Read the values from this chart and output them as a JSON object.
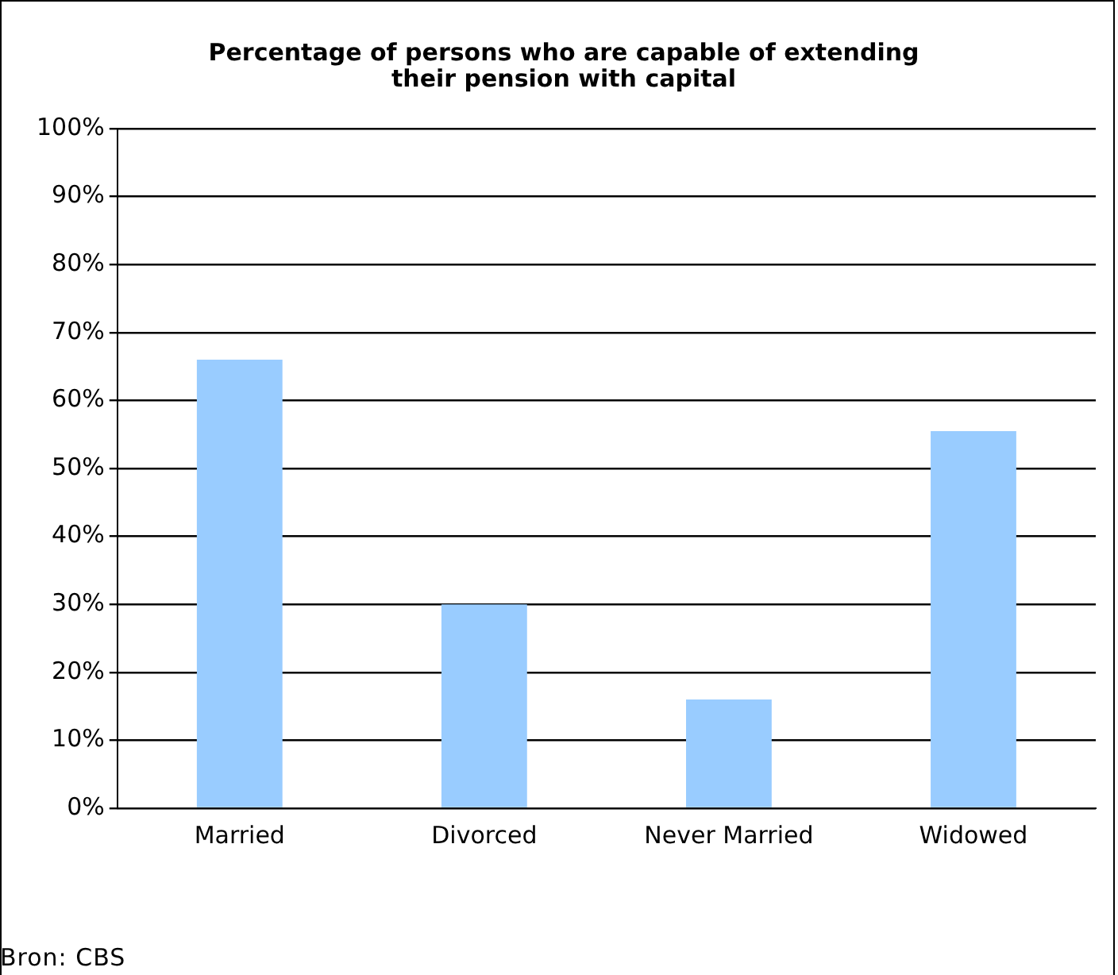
{
  "chart_data": {
    "type": "bar",
    "title": "Percentage of persons who are capable of extending\ntheir pension with capital",
    "categories": [
      "Married",
      "Divorced",
      "Never Married",
      "Widowed"
    ],
    "values": [
      66,
      30,
      16,
      55.5
    ],
    "color": "#99ccff",
    "ylim": [
      0,
      100
    ],
    "yticks": [
      {
        "value": 0,
        "label": "0%"
      },
      {
        "value": 10,
        "label": "10%"
      },
      {
        "value": 20,
        "label": "20%"
      },
      {
        "value": 30,
        "label": "30%"
      },
      {
        "value": 40,
        "label": "40%"
      },
      {
        "value": 50,
        "label": "50%"
      },
      {
        "value": 60,
        "label": "60%"
      },
      {
        "value": 70,
        "label": "70%"
      },
      {
        "value": 80,
        "label": "80%"
      },
      {
        "value": 90,
        "label": "90%"
      },
      {
        "value": 100,
        "label": "100%"
      }
    ],
    "grid": "y",
    "legend": false,
    "annotations": [
      "Bron: CBS"
    ]
  }
}
